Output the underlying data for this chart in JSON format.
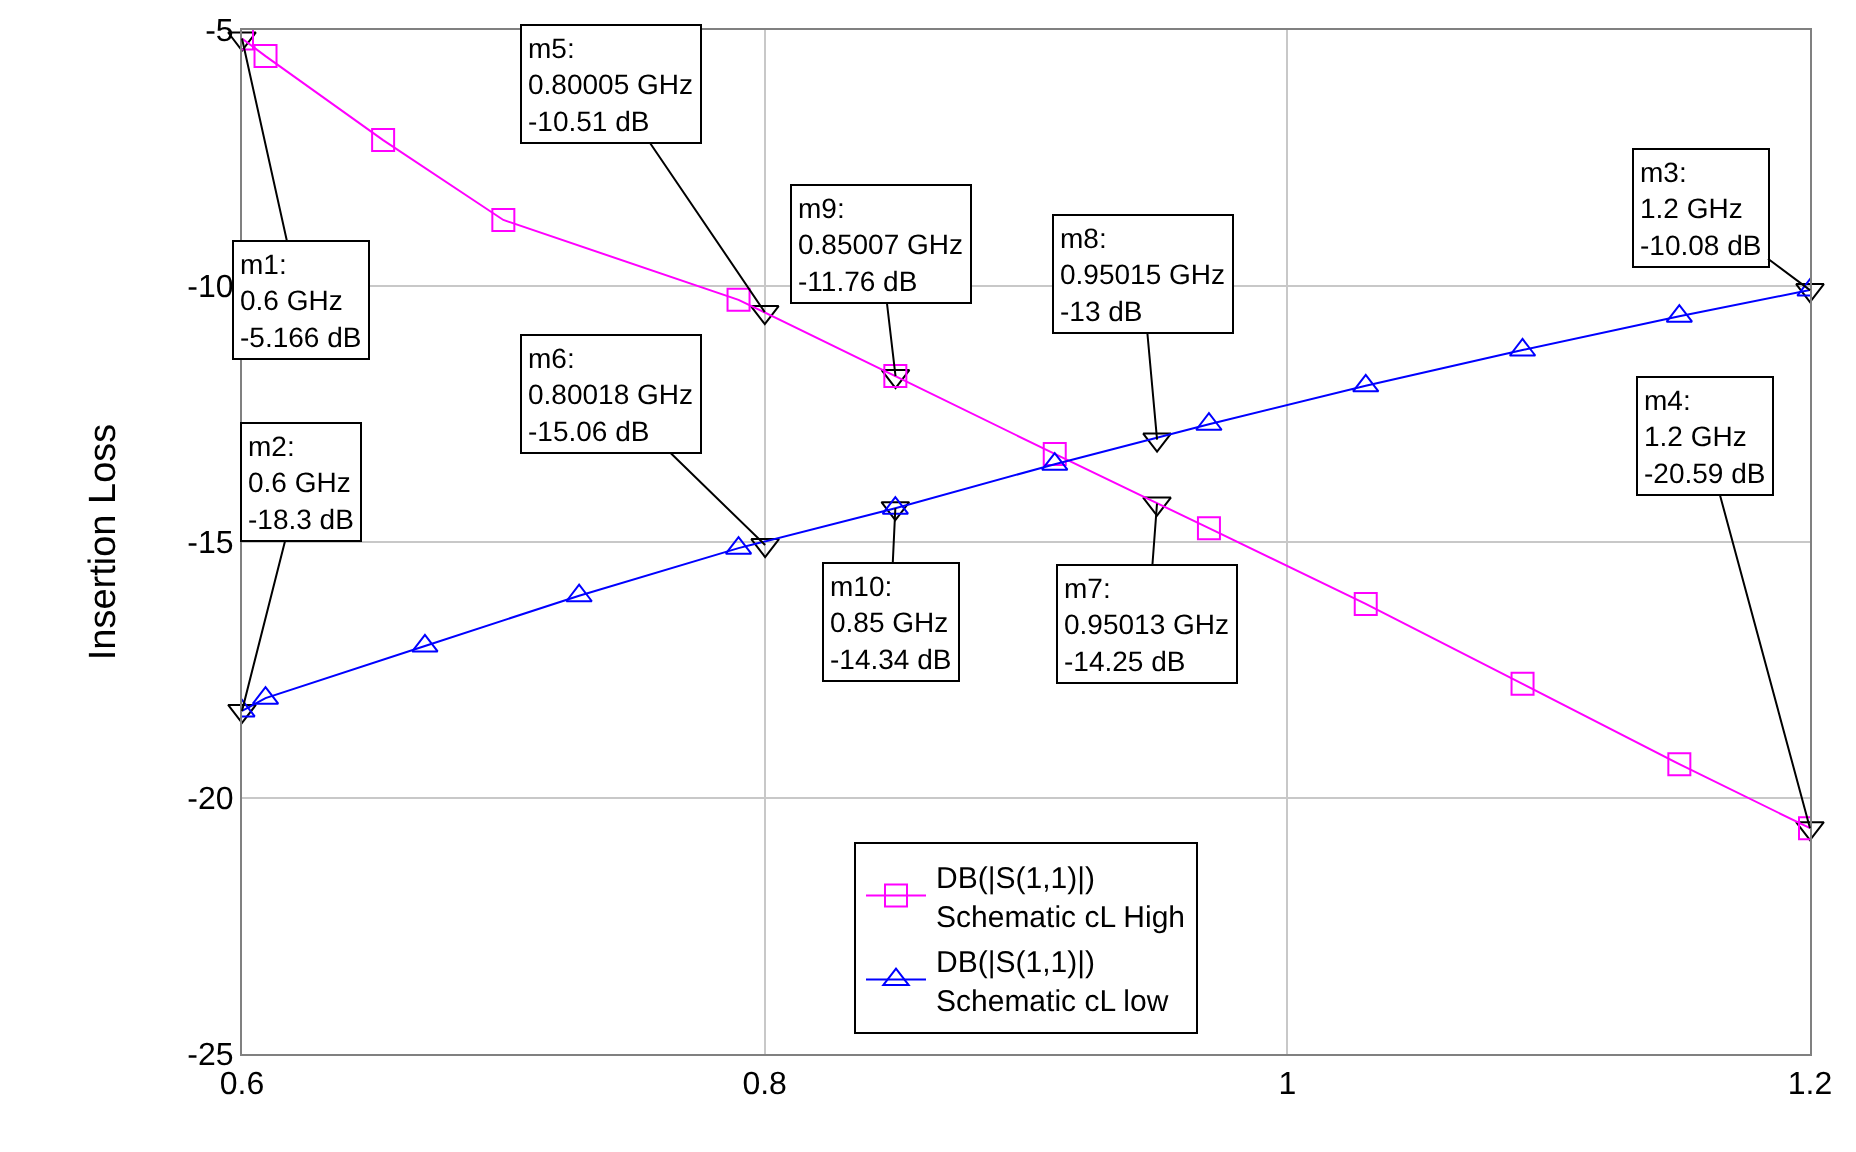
{
  "chart_data": {
    "type": "line",
    "ylabel": "Insertion Loss",
    "xlim": [
      0.6,
      1.2
    ],
    "xticks": [
      0.6,
      0.8,
      1,
      1.2
    ],
    "ylim": [
      -25,
      -5
    ],
    "yticks": [
      -25,
      -20,
      -15,
      -10,
      -5
    ],
    "grid": true,
    "legend": "bottom",
    "line_style": "solid",
    "series": [
      {
        "name": "DB(|S(1,1)|)\nSchematic cL High",
        "color": "#ff00ff",
        "marker": "square",
        "x": [
          0.6,
          0.609,
          0.654,
          0.7,
          0.79,
          0.85,
          0.911,
          0.97,
          1.03,
          1.09,
          1.15,
          1.2
        ],
        "values": [
          -5.166,
          -5.51,
          -7.15,
          -8.71,
          -10.27,
          -11.76,
          -13.28,
          -14.73,
          -16.21,
          -17.77,
          -19.34,
          -20.59
        ]
      },
      {
        "name": "DB(|S(1,1)|)\nSchematic cL low",
        "color": "#0000ff",
        "marker": "triangle",
        "x": [
          0.6,
          0.609,
          0.67,
          0.729,
          0.79,
          0.85,
          0.911,
          0.97,
          1.03,
          1.09,
          1.15,
          1.2
        ],
        "values": [
          -18.3,
          -18.05,
          -17.03,
          -16.05,
          -15.12,
          -14.34,
          -13.48,
          -12.7,
          -11.95,
          -11.25,
          -10.59,
          -10.08
        ]
      }
    ],
    "annotations": [
      {
        "text": "m1:\n0.6 GHz\n-5.166 dB",
        "x": 0.6,
        "y": -5.166
      },
      {
        "text": "m2:\n0.6 GHz\n-18.3 dB",
        "x": 0.6,
        "y": -18.3
      },
      {
        "text": "m5:\n0.80005 GHz\n-10.51 dB",
        "x": 0.80005,
        "y": -10.51
      },
      {
        "text": "m6:\n0.80018 GHz\n-15.06 dB",
        "x": 0.80018,
        "y": -15.06
      },
      {
        "text": "m9:\n0.85007 GHz\n-11.76 dB",
        "x": 0.85007,
        "y": -11.76
      },
      {
        "text": "m10:\n0.85 GHz\n-14.34 dB",
        "x": 0.85,
        "y": -14.34
      },
      {
        "text": "m8:\n0.95015 GHz\n-13 dB",
        "x": 0.95015,
        "y": -13
      },
      {
        "text": "m7:\n0.95013 GHz\n-14.25 dB",
        "x": 0.95013,
        "y": -14.25
      },
      {
        "text": "m3:\n1.2 GHz\n-10.08 dB",
        "x": 1.2,
        "y": -10.08
      },
      {
        "text": "m4:\n1.2 GHz\n-20.59 dB",
        "x": 1.2,
        "y": -20.59
      }
    ]
  }
}
